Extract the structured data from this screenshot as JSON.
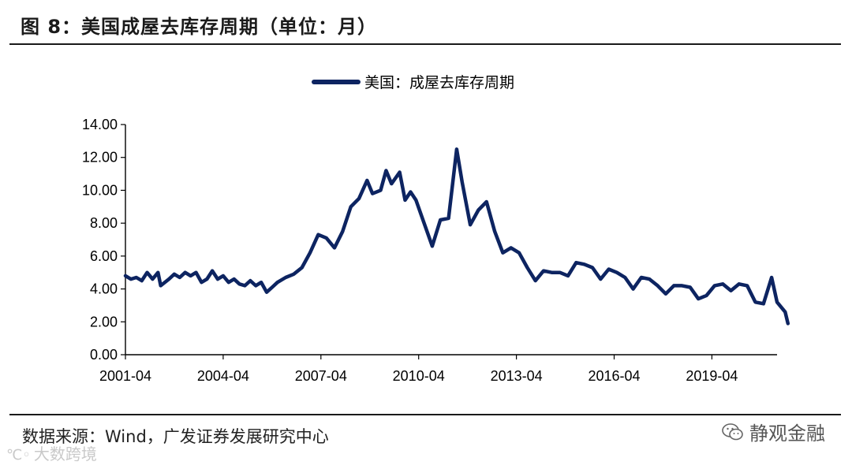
{
  "figure": {
    "title": "图 8：美国成屋去库存周期（单位：月）",
    "source": "数据来源：Wind，广发证券发展研究中心",
    "watermark_left": "大数跨境",
    "watermark_right": "静观金融"
  },
  "chart_data": {
    "type": "line",
    "title": "",
    "xlabel": "",
    "ylabel": "",
    "ylim": [
      0,
      14
    ],
    "yticks": [
      "0.00",
      "2.00",
      "4.00",
      "6.00",
      "8.00",
      "10.00",
      "12.00",
      "14.00"
    ],
    "xticks": [
      "2001-04",
      "2004-04",
      "2007-04",
      "2010-04",
      "2013-04",
      "2016-04",
      "2019-04"
    ],
    "xlim": [
      "2001-04",
      "2021-04"
    ],
    "grid": false,
    "legend": "top-center",
    "color": "#0d2461",
    "series": [
      {
        "name": "美国：成屋去库存周期",
        "points": [
          [
            "2001-04",
            4.8
          ],
          [
            "2001-06",
            4.6
          ],
          [
            "2001-08",
            4.7
          ],
          [
            "2001-10",
            4.5
          ],
          [
            "2001-12",
            5.0
          ],
          [
            "2002-02",
            4.6
          ],
          [
            "2002-04",
            5.0
          ],
          [
            "2002-05",
            4.2
          ],
          [
            "2002-08",
            4.6
          ],
          [
            "2002-10",
            4.9
          ],
          [
            "2002-12",
            4.7
          ],
          [
            "2003-02",
            5.0
          ],
          [
            "2003-04",
            4.8
          ],
          [
            "2003-06",
            5.0
          ],
          [
            "2003-08",
            4.4
          ],
          [
            "2003-10",
            4.6
          ],
          [
            "2003-12",
            5.1
          ],
          [
            "2004-02",
            4.6
          ],
          [
            "2004-04",
            4.8
          ],
          [
            "2004-06",
            4.4
          ],
          [
            "2004-08",
            4.6
          ],
          [
            "2004-10",
            4.3
          ],
          [
            "2004-12",
            4.2
          ],
          [
            "2005-02",
            4.5
          ],
          [
            "2005-04",
            4.2
          ],
          [
            "2005-06",
            4.4
          ],
          [
            "2005-08",
            3.8
          ],
          [
            "2005-10",
            4.1
          ],
          [
            "2005-12",
            4.4
          ],
          [
            "2006-03",
            4.7
          ],
          [
            "2006-06",
            4.9
          ],
          [
            "2006-09",
            5.3
          ],
          [
            "2006-12",
            6.2
          ],
          [
            "2007-03",
            7.3
          ],
          [
            "2007-06",
            7.1
          ],
          [
            "2007-09",
            6.5
          ],
          [
            "2007-12",
            7.5
          ],
          [
            "2008-03",
            9.0
          ],
          [
            "2008-06",
            9.5
          ],
          [
            "2008-09",
            10.6
          ],
          [
            "2008-11",
            9.8
          ],
          [
            "2009-02",
            10.0
          ],
          [
            "2009-04",
            11.2
          ],
          [
            "2009-06",
            10.4
          ],
          [
            "2009-09",
            11.1
          ],
          [
            "2009-11",
            9.4
          ],
          [
            "2010-01",
            9.9
          ],
          [
            "2010-03",
            9.4
          ],
          [
            "2010-06",
            8.0
          ],
          [
            "2010-09",
            6.6
          ],
          [
            "2010-12",
            8.2
          ],
          [
            "2011-03",
            8.3
          ],
          [
            "2011-06",
            12.5
          ],
          [
            "2011-08",
            10.5
          ],
          [
            "2011-11",
            7.9
          ],
          [
            "2012-02",
            8.8
          ],
          [
            "2012-05",
            9.3
          ],
          [
            "2012-08",
            7.5
          ],
          [
            "2012-11",
            6.2
          ],
          [
            "2013-02",
            6.5
          ],
          [
            "2013-05",
            6.2
          ],
          [
            "2013-08",
            5.3
          ],
          [
            "2013-11",
            4.5
          ],
          [
            "2014-02",
            5.1
          ],
          [
            "2014-05",
            5.0
          ],
          [
            "2014-08",
            5.0
          ],
          [
            "2014-11",
            4.8
          ],
          [
            "2015-02",
            5.6
          ],
          [
            "2015-05",
            5.5
          ],
          [
            "2015-08",
            5.3
          ],
          [
            "2015-11",
            4.6
          ],
          [
            "2016-02",
            5.2
          ],
          [
            "2016-05",
            5.0
          ],
          [
            "2016-08",
            4.7
          ],
          [
            "2016-11",
            4.0
          ],
          [
            "2017-02",
            4.7
          ],
          [
            "2017-05",
            4.6
          ],
          [
            "2017-08",
            4.2
          ],
          [
            "2017-11",
            3.7
          ],
          [
            "2018-02",
            4.2
          ],
          [
            "2018-05",
            4.2
          ],
          [
            "2018-08",
            4.1
          ],
          [
            "2018-11",
            3.4
          ],
          [
            "2019-02",
            3.6
          ],
          [
            "2019-05",
            4.2
          ],
          [
            "2019-08",
            4.3
          ],
          [
            "2019-11",
            3.9
          ],
          [
            "2020-02",
            4.3
          ],
          [
            "2020-05",
            4.2
          ],
          [
            "2020-08",
            3.2
          ],
          [
            "2020-11",
            3.1
          ],
          [
            "2021-02",
            4.7
          ],
          [
            "2021-04",
            3.2
          ],
          [
            "2021-07",
            2.6
          ],
          [
            "2021-08",
            1.9
          ]
        ]
      }
    ]
  }
}
